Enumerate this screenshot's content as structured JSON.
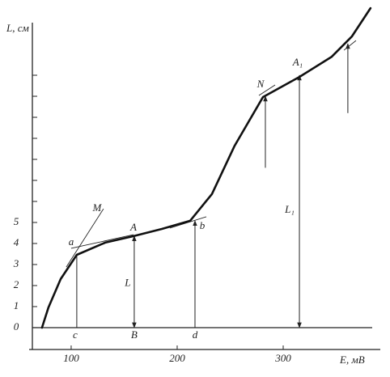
{
  "chart_data": {
    "type": "line",
    "y_label": "L, см",
    "x_label": "E, мВ",
    "xlim": [
      63.4,
      391.6
    ],
    "ylim": [
      -1.04,
      15.4
    ],
    "xticks": [
      100,
      200,
      300
    ],
    "yticks": [
      0,
      1,
      2,
      3,
      4,
      5
    ],
    "minor_yticks": [
      6,
      7,
      8,
      9,
      10,
      11,
      12
    ],
    "baseline": 0,
    "color": "#111111",
    "series": [
      {
        "x": [
          72.5,
          78.6,
          90.1,
          105.3,
          132.1,
          158.8,
          185.5,
          212.2,
          232.8,
          254.2,
          280.9,
          315.3,
          345.8,
          364.9,
          382.4
        ],
        "values": [
          0,
          0.96,
          2.31,
          3.46,
          4.04,
          4.35,
          4.69,
          5.08,
          6.35,
          8.65,
          10.96,
          11.92,
          12.88,
          13.85,
          15.19
        ]
      }
    ],
    "guide_lines": [
      [
        95.4,
        2.88,
        130.5,
        5.65
      ],
      [
        100,
        3.77,
        158.8,
        4.42
      ],
      [
        193.1,
        4.73,
        227.5,
        5.27
      ],
      [
        277.1,
        11.04,
        292.4,
        11.54
      ],
      [
        357.3,
        13.19,
        368.7,
        13.65
      ]
    ],
    "verticals": [
      {
        "x": 105.3,
        "from": 0,
        "to": 3.46,
        "arrow": "none"
      },
      {
        "x": 159.5,
        "from": 0,
        "to": 4.35,
        "arrow": "both"
      },
      {
        "x": 216.8,
        "from": 0,
        "to": 5.08,
        "arrow": "up"
      },
      {
        "x": 283.2,
        "from": 7.6,
        "to": 11.0,
        "arrow": "up"
      },
      {
        "x": 315.3,
        "from": 0,
        "to": 12.0,
        "arrow": "both"
      },
      {
        "x": 361,
        "from": 10.2,
        "to": 13.5,
        "arrow": "up"
      }
    ],
    "annotations": [
      {
        "text": "M",
        "x": 124.4,
        "y": 5.65
      },
      {
        "text": "a",
        "x": 100,
        "y": 4.04
      },
      {
        "text": "A",
        "x": 158.8,
        "y": 4.73
      },
      {
        "text": "b",
        "x": 223.7,
        "y": 4.81
      },
      {
        "text": "N",
        "x": 278.6,
        "y": 11.54
      },
      {
        "text": "A₁",
        "x": 313.7,
        "y": 12.58
      },
      {
        "text": "c",
        "x": 103.8,
        "y": -0.38
      },
      {
        "text": "B",
        "x": 159.5,
        "y": -0.38
      },
      {
        "text": "d",
        "x": 216.8,
        "y": -0.38
      },
      {
        "text": "L",
        "x": 153.4,
        "y": 2.1
      },
      {
        "text": "L₁",
        "x": 306.1,
        "y": 5.58
      }
    ]
  }
}
